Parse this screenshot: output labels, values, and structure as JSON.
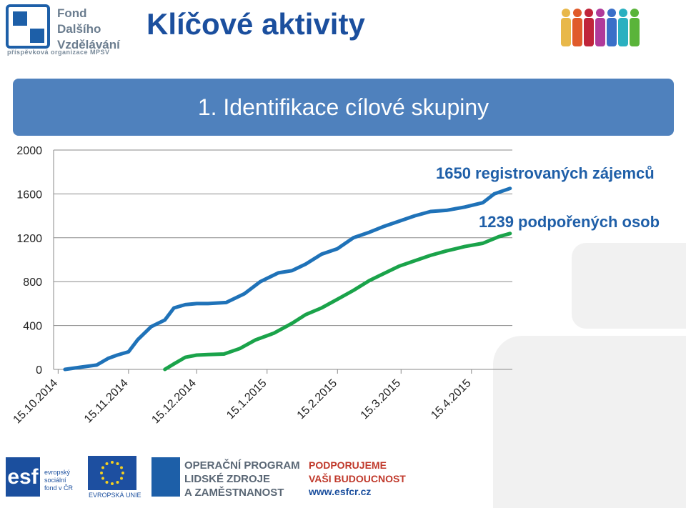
{
  "header": {
    "logo_lines": [
      "Fond",
      "Dalšího",
      "Vzdělávání"
    ],
    "logo_sub": "příspěvková organizace MPSV",
    "title": "Klíčové aktivity"
  },
  "banner": {
    "title": "1. Identifikace cílové skupiny"
  },
  "annotations": {
    "registered": "1650 registrovaných zájemců",
    "supported": "1239 podpořených osob"
  },
  "colors": {
    "registered": "#1f72b8",
    "supported": "#1aa34a",
    "banner": "#4f81bd",
    "title": "#1b4f9e"
  },
  "chart_data": {
    "type": "line",
    "x_ticks": [
      "15.10.2014",
      "15.11.2014",
      "15.12.2014",
      "15.1.2015",
      "15.2.2015",
      "15.3.2015",
      "15.4.2015"
    ],
    "ylim": [
      0,
      2000
    ],
    "y_ticks": [
      0,
      400,
      800,
      1200,
      1600,
      2000
    ],
    "grid": true,
    "series": [
      {
        "name": "registered",
        "x": [
          "2014-10-18",
          "2014-10-25",
          "2014-11-01",
          "2014-11-06",
          "2014-11-10",
          "2014-11-15",
          "2014-11-19",
          "2014-11-25",
          "2014-12-01",
          "2014-12-05",
          "2014-12-10",
          "2014-12-15",
          "2014-12-20",
          "2014-12-28",
          "2015-01-05",
          "2015-01-12",
          "2015-01-20",
          "2015-01-26",
          "2015-02-01",
          "2015-02-08",
          "2015-02-15",
          "2015-02-22",
          "2015-03-01",
          "2015-03-07",
          "2015-03-14",
          "2015-03-21",
          "2015-03-28",
          "2015-04-04",
          "2015-04-12",
          "2015-04-20",
          "2015-04-25",
          "2015-05-02"
        ],
        "values": [
          0,
          20,
          40,
          100,
          130,
          160,
          270,
          390,
          450,
          560,
          590,
          600,
          600,
          610,
          690,
          800,
          880,
          900,
          960,
          1050,
          1100,
          1200,
          1250,
          1300,
          1350,
          1400,
          1440,
          1450,
          1480,
          1520,
          1600,
          1650
        ]
      },
      {
        "name": "supported",
        "x": [
          "2014-12-01",
          "2014-12-05",
          "2014-12-10",
          "2014-12-15",
          "2014-12-20",
          "2014-12-27",
          "2015-01-03",
          "2015-01-10",
          "2015-01-18",
          "2015-01-26",
          "2015-02-01",
          "2015-02-08",
          "2015-02-15",
          "2015-02-22",
          "2015-03-01",
          "2015-03-07",
          "2015-03-14",
          "2015-03-21",
          "2015-03-28",
          "2015-04-04",
          "2015-04-12",
          "2015-04-20",
          "2015-04-27",
          "2015-05-02"
        ],
        "values": [
          0,
          50,
          110,
          130,
          135,
          140,
          190,
          270,
          330,
          420,
          500,
          560,
          640,
          720,
          810,
          870,
          940,
          990,
          1040,
          1080,
          1120,
          1150,
          1210,
          1239
        ]
      }
    ]
  },
  "footer": {
    "esf": "esf",
    "esf_text": [
      "evropský",
      "sociální",
      "fond v ČR"
    ],
    "eu_label": "EVROPSKÁ UNIE",
    "op_lines": [
      "OPERAČNÍ PROGRAM",
      "LIDSKÉ ZDROJE",
      "A ZAMĚSTNANOST"
    ],
    "support_lines": [
      "PODPORUJEME",
      "VAŠI BUDOUCNOST"
    ],
    "url": "www.esfcr.cz"
  }
}
